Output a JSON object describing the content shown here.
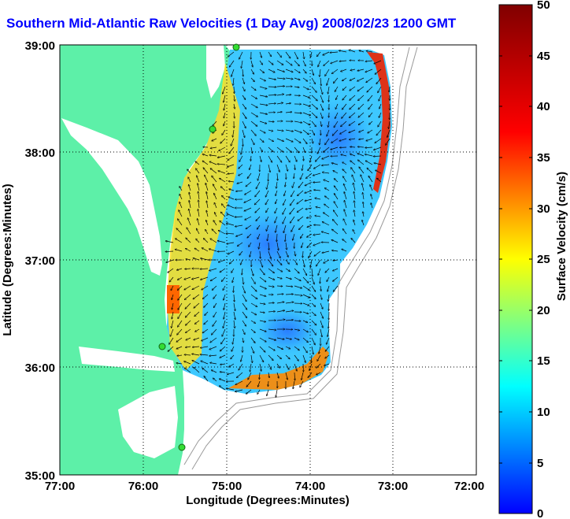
{
  "title": "Southern Mid-Atlantic Raw Velocities (1 Day Avg) 2008/02/23 1200 GMT",
  "x_axis": {
    "label": "Longitude (Degrees:Minutes)",
    "ticks": [
      "77:00",
      "76:00",
      "75:00",
      "74:00",
      "73:00",
      "72:00"
    ]
  },
  "y_axis": {
    "label": "Latitude (Degrees:Minutes)",
    "ticks": [
      "39:00",
      "38:00",
      "37:00",
      "36:00",
      "35:00"
    ]
  },
  "colorbar": {
    "label": "Surface Velocity (cm/s)",
    "ticks": [
      "50",
      "45",
      "40",
      "35",
      "30",
      "25",
      "20",
      "15",
      "10",
      "5",
      "0"
    ],
    "min": 0,
    "max": 50,
    "colormap": "jet"
  },
  "colors": {
    "title": "#0000ff",
    "land": "#5df0a8",
    "water": "#ffffff",
    "arrows": "#000000",
    "grid": "#000000",
    "station_marker": "#33dd33"
  },
  "map_extent": {
    "lon_range": [
      -77,
      -72
    ],
    "lat_range": [
      35,
      39
    ]
  },
  "stations": [
    {
      "lon": -74.88,
      "lat": 38.98
    },
    {
      "lon": -75.1,
      "lat": 38.22
    },
    {
      "lon": -75.7,
      "lat": 36.18
    },
    {
      "lon": -75.48,
      "lat": 35.25
    }
  ]
}
